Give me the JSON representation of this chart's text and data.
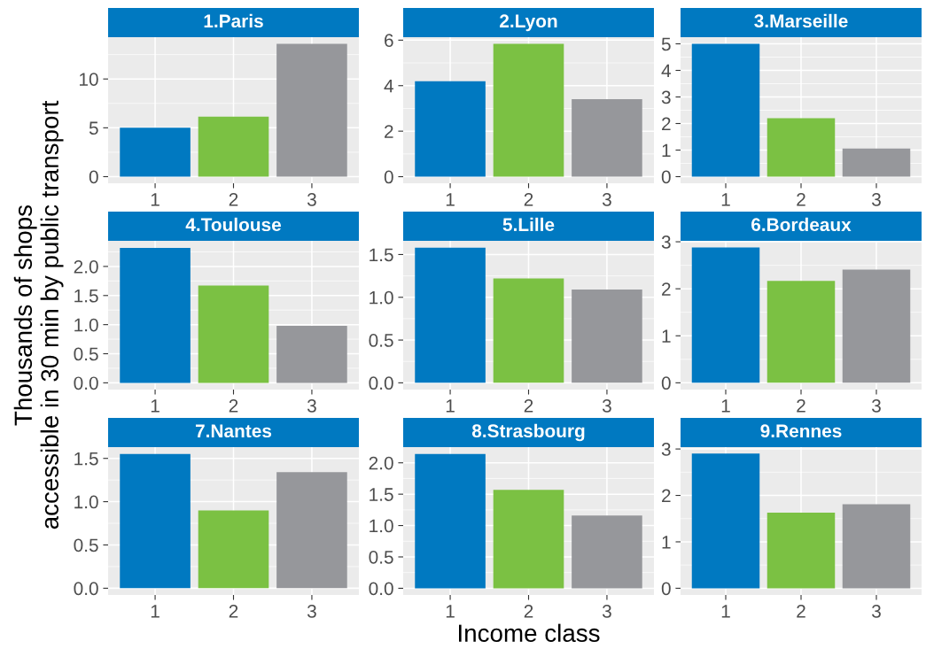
{
  "chart_data": [
    {
      "type": "bar",
      "title": "1.Paris",
      "categories": [
        "1",
        "2",
        "3"
      ],
      "values": [
        5.0,
        6.15,
        13.6
      ],
      "colors": [
        "#0079c1",
        "#7bc143",
        "#96979b"
      ],
      "ylim": [
        -0.68,
        14.28
      ],
      "yticks": [
        0,
        5,
        10
      ],
      "grid": true
    },
    {
      "type": "bar",
      "title": "2.Lyon",
      "categories": [
        "1",
        "2",
        "3"
      ],
      "values": [
        4.19,
        5.84,
        3.41
      ],
      "colors": [
        "#0079c1",
        "#7bc143",
        "#96979b"
      ],
      "ylim": [
        -0.29,
        6.13
      ],
      "yticks": [
        0,
        2,
        4,
        6
      ],
      "grid": true
    },
    {
      "type": "bar",
      "title": "3.Marseille",
      "categories": [
        "1",
        "2",
        "3"
      ],
      "values": [
        5.0,
        2.2,
        1.06
      ],
      "colors": [
        "#0079c1",
        "#7bc143",
        "#96979b"
      ],
      "ylim": [
        -0.25,
        5.25
      ],
      "yticks": [
        0,
        1,
        2,
        3,
        4,
        5
      ],
      "grid": true
    },
    {
      "type": "bar",
      "title": "4.Toulouse",
      "ylabel": "Thousands of shops\naccessible in 30 min by public transport",
      "categories": [
        "1",
        "2",
        "3"
      ],
      "values": [
        2.32,
        1.67,
        0.98
      ],
      "colors": [
        "#0079c1",
        "#7bc143",
        "#96979b"
      ],
      "ylim": [
        -0.116,
        2.44
      ],
      "yticks": [
        {
          "value": 0,
          "label": "0.0"
        },
        {
          "value": 0.5,
          "label": "0.5"
        },
        {
          "value": 1,
          "label": "1.0"
        },
        {
          "value": 1.5,
          "label": "1.5"
        },
        {
          "value": 2,
          "label": "2.0"
        }
      ],
      "grid": true
    },
    {
      "type": "bar",
      "title": "5.Lille",
      "categories": [
        "1",
        "2",
        "3"
      ],
      "values": [
        1.58,
        1.22,
        1.09
      ],
      "colors": [
        "#0079c1",
        "#7bc143",
        "#96979b"
      ],
      "ylim": [
        -0.079,
        1.66
      ],
      "yticks": [
        {
          "value": 0,
          "label": "0.0"
        },
        {
          "value": 0.5,
          "label": "0.5"
        },
        {
          "value": 1,
          "label": "1.0"
        },
        {
          "value": 1.5,
          "label": "1.5"
        }
      ],
      "grid": true
    },
    {
      "type": "bar",
      "title": "6.Bordeaux",
      "categories": [
        "1",
        "2",
        "3"
      ],
      "values": [
        2.88,
        2.17,
        2.41
      ],
      "colors": [
        "#0079c1",
        "#7bc143",
        "#96979b"
      ],
      "ylim": [
        -0.144,
        3.02
      ],
      "yticks": [
        0,
        1,
        2,
        3
      ],
      "grid": true
    },
    {
      "type": "bar",
      "title": "7.Nantes",
      "categories": [
        "1",
        "2",
        "3"
      ],
      "values": [
        1.55,
        0.9,
        1.34
      ],
      "colors": [
        "#0079c1",
        "#7bc143",
        "#96979b"
      ],
      "ylim": [
        -0.078,
        1.63
      ],
      "yticks": [
        {
          "value": 0,
          "label": "0.0"
        },
        {
          "value": 0.5,
          "label": "0.5"
        },
        {
          "value": 1,
          "label": "1.0"
        },
        {
          "value": 1.5,
          "label": "1.5"
        }
      ],
      "grid": true
    },
    {
      "type": "bar",
      "title": "8.Strasbourg",
      "xlabel": "Income class",
      "categories": [
        "1",
        "2",
        "3"
      ],
      "values": [
        2.14,
        1.57,
        1.16
      ],
      "colors": [
        "#0079c1",
        "#7bc143",
        "#96979b"
      ],
      "ylim": [
        -0.107,
        2.25
      ],
      "yticks": [
        {
          "value": 0,
          "label": "0.0"
        },
        {
          "value": 0.5,
          "label": "0.5"
        },
        {
          "value": 1,
          "label": "1.0"
        },
        {
          "value": 1.5,
          "label": "1.5"
        },
        {
          "value": 2,
          "label": "2.0"
        }
      ],
      "grid": true
    },
    {
      "type": "bar",
      "title": "9.Rennes",
      "categories": [
        "1",
        "2",
        "3"
      ],
      "values": [
        2.9,
        1.63,
        1.81
      ],
      "colors": [
        "#0079c1",
        "#7bc143",
        "#96979b"
      ],
      "ylim": [
        -0.145,
        3.04
      ],
      "yticks": [
        0,
        1,
        2,
        3
      ],
      "grid": true
    }
  ]
}
